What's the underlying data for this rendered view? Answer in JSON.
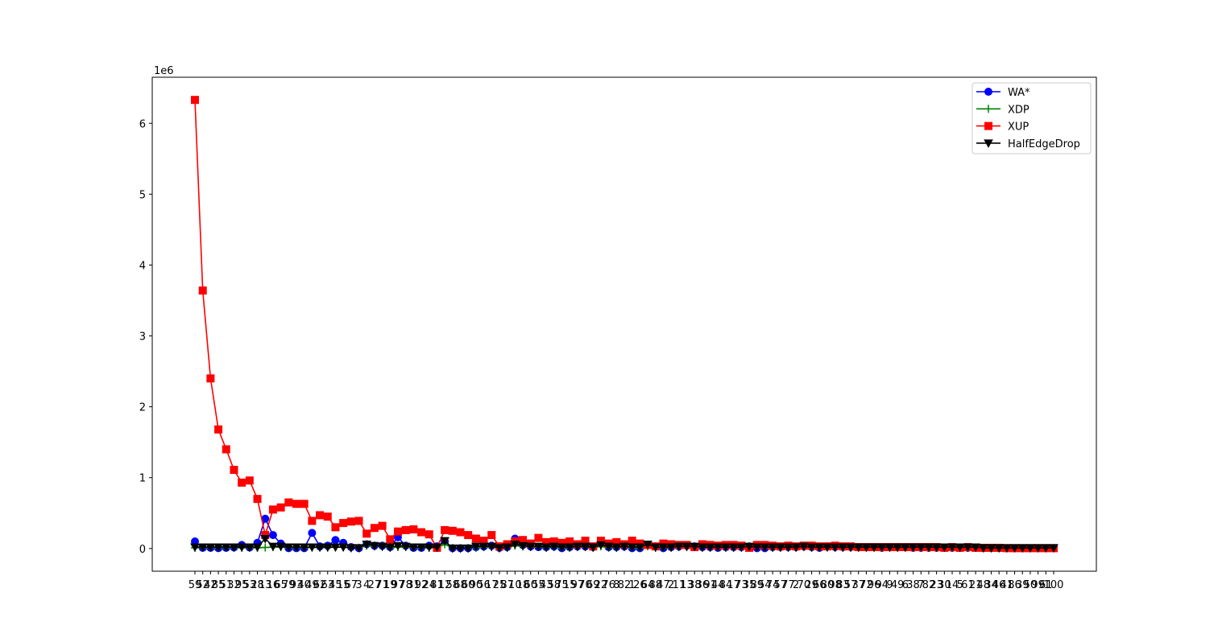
{
  "chart_data": {
    "type": "line",
    "title": "",
    "xlabel": "",
    "ylabel": "",
    "y_offset_label": "1e6",
    "ylim": [
      -320000,
      6650000
    ],
    "y_ticks": [
      0,
      1,
      2,
      3,
      4,
      5,
      6
    ],
    "y_tick_scale": 1000000,
    "grid": false,
    "legend_position": "top-right",
    "categories": [
      "59",
      "52",
      "42",
      "85",
      "51",
      "32",
      "95",
      "53",
      "28",
      "13",
      "16",
      "65",
      "79",
      "93",
      "40",
      "49",
      "62",
      "63",
      "45",
      "15",
      "67",
      "3",
      "4",
      "27",
      "71",
      "19",
      "97",
      "78",
      "31",
      "92",
      "24",
      "81",
      "12",
      "58",
      "68",
      "60",
      "90",
      "56",
      "17",
      "25",
      "87",
      "10",
      "18",
      "60",
      "55",
      "43",
      "58",
      "75",
      "15",
      "97",
      "70",
      "69",
      "22",
      "76",
      "8",
      "82",
      "1",
      "26",
      "64",
      "88",
      "47",
      "2",
      "11",
      "13",
      "38",
      "36",
      "91",
      "44",
      "84",
      "17",
      "73",
      "35",
      "89",
      "54",
      "74",
      "57",
      "77",
      "2",
      "70",
      "29",
      "66",
      "80",
      "98",
      "83",
      "57",
      "37",
      "72",
      "96",
      "94",
      "9",
      "49",
      "6",
      "38",
      "7",
      "82",
      "23",
      "30",
      "14",
      "5",
      "61",
      "21",
      "48",
      "34",
      "46",
      "41",
      "86",
      "39",
      "50",
      "99",
      "61",
      "100"
    ],
    "x_tick_labels": [
      "59",
      "52",
      "42",
      "85",
      "51",
      "32",
      "95",
      "53",
      "28",
      "13",
      "16",
      "65",
      "79",
      "93",
      "40",
      "49",
      "62",
      "63",
      "45",
      "15",
      "67",
      "3",
      "4",
      "27",
      "71",
      "19",
      "97",
      "78",
      "31",
      "92",
      "24",
      "81",
      "12",
      "58",
      "68",
      "60",
      "90",
      "56",
      "17",
      "25",
      "87",
      "10",
      "18",
      "60",
      "55",
      "43",
      "58",
      "75",
      "15",
      "97",
      "70",
      "69",
      "22",
      "76",
      "8",
      "82",
      "1",
      "26",
      "64",
      "88",
      "47",
      "2",
      "11",
      "13",
      "38",
      "36",
      "91",
      "44",
      "84",
      "17",
      "73",
      "35",
      "89",
      "54",
      "74",
      "57",
      "77",
      "2",
      "70",
      "29",
      "66",
      "80",
      "98",
      "83",
      "57",
      "37",
      "72",
      "96",
      "94",
      "9",
      "49",
      "6",
      "38",
      "7",
      "82",
      "23",
      "30",
      "14",
      "5",
      "61",
      "21",
      "48",
      "34",
      "46",
      "41",
      "86",
      "39",
      "50",
      "99",
      "61",
      "100"
    ],
    "series": [
      {
        "name": "WA*",
        "color": "#0000ff",
        "marker": "circle",
        "values": [
          100000,
          10000,
          10000,
          5000,
          10000,
          15000,
          50000,
          15000,
          80000,
          420000,
          190000,
          70000,
          5000,
          5000,
          5000,
          220000,
          30000,
          40000,
          120000,
          80000,
          20000,
          5000,
          60000,
          40000,
          40000,
          20000,
          160000,
          40000,
          10000,
          10000,
          40000,
          30000,
          100000,
          5000,
          5000,
          5000,
          20000,
          30000,
          40000,
          10000,
          20000,
          140000,
          50000,
          30000,
          20000,
          20000,
          30000,
          5000,
          20000,
          30000,
          30000,
          20000,
          80000,
          20000,
          20000,
          30000,
          5000,
          5000,
          50000,
          30000,
          5000,
          20000,
          30000,
          40000,
          30000,
          20000,
          20000,
          10000,
          20000,
          20000,
          20000,
          30000,
          5000,
          5000,
          20000,
          20000,
          20000,
          20000,
          30000,
          20000,
          10000,
          30000,
          20000,
          20000,
          20000,
          20000,
          20000,
          20000,
          10000,
          20000,
          20000,
          20000,
          10000,
          10000,
          10000,
          10000,
          10000,
          10000,
          10000,
          10000,
          10000,
          5000,
          5000,
          5000,
          5000,
          5000,
          5000,
          5000,
          5000,
          5000,
          5000
        ]
      },
      {
        "name": "XDP",
        "color": "#008000",
        "marker": "plus",
        "values": [
          10000,
          10000,
          10000,
          10000,
          10000,
          10000,
          10000,
          10000,
          10000,
          15000,
          20000,
          20000,
          10000,
          10000,
          10000,
          15000,
          15000,
          15000,
          20000,
          20000,
          10000,
          10000,
          40000,
          30000,
          30000,
          10000,
          20000,
          20000,
          10000,
          10000,
          10000,
          10000,
          60000,
          5000,
          5000,
          5000,
          10000,
          20000,
          20000,
          5000,
          10000,
          40000,
          30000,
          20000,
          20000,
          10000,
          20000,
          5000,
          10000,
          20000,
          20000,
          10000,
          30000,
          10000,
          10000,
          20000,
          5000,
          5000,
          30000,
          10000,
          5000,
          10000,
          20000,
          20000,
          20000,
          10000,
          10000,
          10000,
          10000,
          10000,
          10000,
          20000,
          5000,
          5000,
          10000,
          10000,
          10000,
          10000,
          20000,
          10000,
          10000,
          20000,
          10000,
          10000,
          10000,
          10000,
          10000,
          10000,
          10000,
          10000,
          10000,
          10000,
          10000,
          10000,
          10000,
          10000,
          10000,
          10000,
          10000,
          10000,
          10000,
          5000,
          5000,
          5000,
          5000,
          5000,
          5000,
          5000,
          5000,
          5000,
          5000
        ]
      },
      {
        "name": "XUP",
        "color": "#ff0000",
        "marker": "square",
        "values": [
          6330000,
          3640000,
          2400000,
          1680000,
          1400000,
          1110000,
          930000,
          960000,
          700000,
          190000,
          550000,
          580000,
          650000,
          630000,
          630000,
          390000,
          470000,
          450000,
          300000,
          360000,
          380000,
          390000,
          210000,
          290000,
          320000,
          130000,
          240000,
          260000,
          270000,
          230000,
          200000,
          10000,
          260000,
          250000,
          230000,
          190000,
          140000,
          110000,
          190000,
          30000,
          60000,
          100000,
          120000,
          70000,
          150000,
          90000,
          100000,
          80000,
          100000,
          60000,
          110000,
          30000,
          110000,
          70000,
          90000,
          60000,
          110000,
          70000,
          50000,
          30000,
          70000,
          60000,
          50000,
          50000,
          20000,
          60000,
          50000,
          40000,
          50000,
          50000,
          40000,
          10000,
          50000,
          50000,
          40000,
          30000,
          40000,
          30000,
          40000,
          40000,
          30000,
          30000,
          40000,
          30000,
          30000,
          20000,
          20000,
          20000,
          20000,
          20000,
          20000,
          20000,
          20000,
          20000,
          20000,
          20000,
          10000,
          20000,
          10000,
          20000,
          10000,
          10000,
          10000,
          10000,
          5000,
          5000,
          5000,
          5000,
          5000,
          5000,
          5000
        ]
      },
      {
        "name": "HalfEdgeDrop",
        "color": "#000000",
        "marker": "triangle-down",
        "values": [
          20000,
          20000,
          20000,
          20000,
          20000,
          20000,
          20000,
          20000,
          20000,
          140000,
          30000,
          30000,
          20000,
          20000,
          20000,
          20000,
          20000,
          20000,
          20000,
          20000,
          10000,
          10000,
          60000,
          40000,
          30000,
          20000,
          40000,
          30000,
          20000,
          20000,
          20000,
          20000,
          110000,
          5000,
          5000,
          5000,
          30000,
          30000,
          30000,
          10000,
          20000,
          60000,
          40000,
          30000,
          30000,
          20000,
          30000,
          20000,
          20000,
          30000,
          30000,
          20000,
          50000,
          30000,
          20000,
          30000,
          20000,
          20000,
          60000,
          20000,
          20000,
          20000,
          30000,
          30000,
          30000,
          20000,
          20000,
          20000,
          20000,
          20000,
          20000,
          30000,
          20000,
          20000,
          20000,
          20000,
          20000,
          20000,
          30000,
          20000,
          20000,
          20000,
          20000,
          20000,
          20000,
          20000,
          20000,
          20000,
          20000,
          20000,
          20000,
          20000,
          20000,
          20000,
          20000,
          20000,
          20000,
          20000,
          20000,
          20000,
          20000,
          10000,
          10000,
          10000,
          10000,
          10000,
          10000,
          10000,
          10000,
          10000,
          10000
        ]
      }
    ]
  }
}
